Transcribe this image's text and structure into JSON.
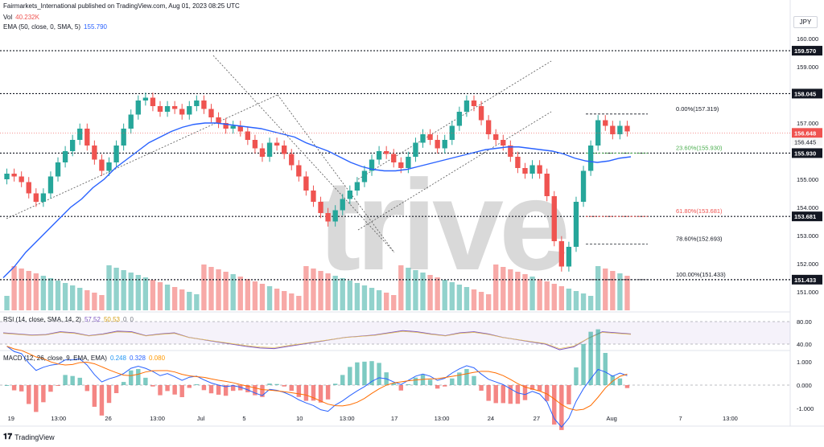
{
  "header": {
    "published": "Fairmarkets_International published on TradingView.com, Aug 01, 2023 08:25 UTC",
    "vol_label": "Vol",
    "vol_value": "40.232K",
    "ema_label": "EMA (50, close, 0, SMA, 5)",
    "ema_value": "155.790"
  },
  "currency": "JPY",
  "watermark": "trive",
  "rsi": {
    "label": "RSI (14, close, SMA, 14, 2)",
    "v1": "57.52",
    "v2": "50.53",
    "v3": "0",
    "v4": "0"
  },
  "macd": {
    "label": "MACD (12, 26, close, 9, EMA, EMA)",
    "v1": "0.248",
    "v2": "0.328",
    "v3": "0.080"
  },
  "footer": {
    "brand": "TradingView"
  },
  "colors": {
    "up": "#26a69a",
    "down": "#ef5350",
    "ema": "#2962ff",
    "rsi": "#7e57c2",
    "macd": "#2962ff",
    "signal": "#ff6d00"
  },
  "chart_data": {
    "type": "candlestick",
    "ylim": [
      150.8,
      160.4
    ],
    "y_ticks": [
      "160.000",
      "159.000",
      "158.000",
      "157.000",
      "156.000",
      "155.000",
      "154.000",
      "153.000",
      "152.000",
      "151.000"
    ],
    "x_ticks": [
      "19",
      "13:00",
      "26",
      "13:00",
      "Jul",
      "5",
      "10",
      "13:00",
      "17",
      "13:00",
      "24",
      "27",
      "Aug",
      "7",
      "13:00"
    ],
    "x_tick_pos": [
      0.01,
      0.07,
      0.133,
      0.195,
      0.25,
      0.305,
      0.375,
      0.435,
      0.495,
      0.555,
      0.617,
      0.675,
      0.77,
      0.857,
      0.92
    ],
    "horizontal_levels": [
      {
        "value": 159.57,
        "label": "159.570"
      },
      {
        "value": 158.045,
        "label": "158.045"
      },
      {
        "value": 155.93,
        "label": "155.930"
      },
      {
        "value": 153.681,
        "label": "153.681"
      },
      {
        "value": 151.433,
        "label": "151.433"
      }
    ],
    "last_price": {
      "value": 156.648,
      "label": "156.648"
    },
    "last_price_2": {
      "label": "156.445"
    },
    "fib_levels": [
      {
        "label": "0.00%(157.319)",
        "value": 157.319,
        "color": "#131722"
      },
      {
        "label": "23.60%(155.930)",
        "value": 155.93,
        "color": "#4caf50"
      },
      {
        "label": "61.80%(153.681)",
        "value": 153.681,
        "color": "#ef5350"
      },
      {
        "label": "78.60%(152.693)",
        "value": 152.693,
        "color": "#131722"
      },
      {
        "label": "100.00%(151.433)",
        "value": 151.433,
        "color": "#131722"
      }
    ],
    "close_path": [
      155.2,
      155.1,
      154.9,
      154.5,
      154.2,
      154.5,
      155.1,
      155.6,
      156.0,
      156.4,
      156.8,
      156.2,
      155.7,
      155.3,
      155.6,
      156.2,
      156.8,
      157.3,
      157.8,
      157.9,
      157.6,
      157.4,
      157.6,
      157.5,
      157.3,
      157.6,
      157.8,
      157.5,
      157.2,
      157.0,
      156.8,
      156.9,
      156.7,
      156.4,
      156.1,
      155.8,
      156.3,
      156.2,
      155.9,
      155.5,
      155.1,
      154.6,
      154.2,
      153.8,
      153.5,
      153.9,
      154.3,
      154.6,
      154.9,
      155.3,
      155.7,
      156.0,
      155.9,
      155.6,
      155.4,
      155.8,
      156.3,
      156.6,
      156.4,
      156.1,
      156.4,
      156.9,
      157.4,
      157.8,
      157.6,
      157.1,
      156.6,
      156.4,
      156.2,
      155.8,
      155.4,
      155.2,
      155.5,
      155.2,
      154.4,
      152.8,
      151.9,
      152.6,
      154.2,
      155.3,
      156.2,
      157.1,
      156.9,
      156.6,
      156.9,
      156.7
    ],
    "ema_path": [
      151.5,
      151.9,
      152.4,
      152.8,
      153.2,
      153.6,
      154.0,
      154.3,
      154.7,
      155.0,
      155.4,
      155.7,
      156.0,
      156.3,
      156.5,
      156.7,
      156.85,
      156.95,
      157.0,
      157.0,
      156.95,
      156.9,
      156.85,
      156.8,
      156.7,
      156.6,
      156.5,
      156.3,
      156.15,
      156.0,
      155.8,
      155.6,
      155.45,
      155.35,
      155.3,
      155.3,
      155.35,
      155.45,
      155.55,
      155.65,
      155.75,
      155.85,
      155.95,
      156.05,
      156.1,
      156.15,
      156.15,
      156.1,
      156.05,
      156.0,
      155.9,
      155.75,
      155.65,
      155.6,
      155.65,
      155.75,
      155.8
    ],
    "rsi_path": [
      60,
      58,
      56,
      57,
      62,
      60,
      55,
      58,
      63,
      62,
      55,
      58,
      60,
      52,
      48,
      44,
      40,
      36,
      33,
      32,
      36,
      40,
      44,
      48,
      52,
      54,
      56,
      60,
      64,
      62,
      58,
      55,
      60,
      62,
      58,
      52,
      48,
      44,
      40,
      30,
      35,
      50,
      62,
      60,
      58
    ],
    "rsi_levels": [
      80,
      40
    ],
    "macd_ticks": [
      "1.000",
      "0.000",
      "-1.000"
    ]
  }
}
